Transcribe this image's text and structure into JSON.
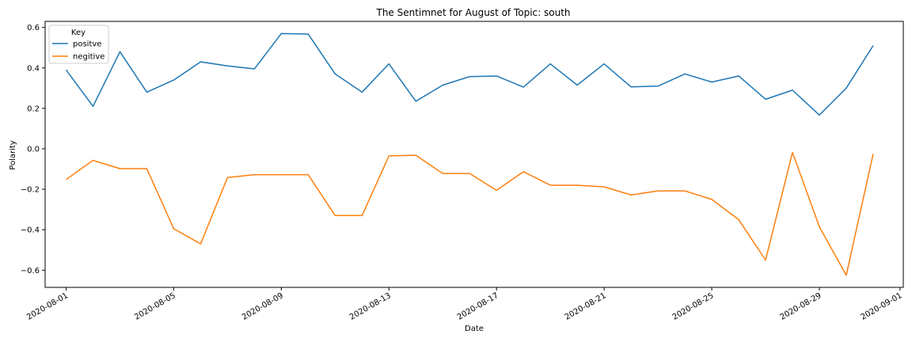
{
  "chart_data": {
    "type": "line",
    "title": "The Sentimnet for August of Topic: south",
    "xlabel": "Date",
    "ylabel": "Polarity",
    "x": [
      "2020-08-01",
      "2020-08-02",
      "2020-08-03",
      "2020-08-04",
      "2020-08-05",
      "2020-08-06",
      "2020-08-07",
      "2020-08-08",
      "2020-08-09",
      "2020-08-10",
      "2020-08-11",
      "2020-08-12",
      "2020-08-13",
      "2020-08-14",
      "2020-08-15",
      "2020-08-16",
      "2020-08-17",
      "2020-08-18",
      "2020-08-19",
      "2020-08-20",
      "2020-08-21",
      "2020-08-22",
      "2020-08-23",
      "2020-08-24",
      "2020-08-25",
      "2020-08-26",
      "2020-08-27",
      "2020-08-28",
      "2020-08-29",
      "2020-08-30",
      "2020-08-31"
    ],
    "x_ticks": [
      "2020-08-01",
      "2020-08-05",
      "2020-08-09",
      "2020-08-13",
      "2020-08-17",
      "2020-08-21",
      "2020-08-25",
      "2020-08-29",
      "2020-09-01"
    ],
    "y_ticks": [
      0.6,
      0.4,
      0.2,
      0.0,
      -0.2,
      -0.4,
      -0.6
    ],
    "y_tick_labels": [
      "0.6",
      "0.4",
      "0.2",
      "0.0",
      "−0.2",
      "−0.4",
      "−0.6"
    ],
    "xlim": [
      "2020-07-31",
      "2020-09-01"
    ],
    "ylim": [
      -0.685,
      0.63
    ],
    "grid": false,
    "legend": {
      "title": "Key",
      "position": "top-left"
    },
    "series": [
      {
        "name": "positve",
        "color": "#1f77b4",
        "values": [
          0.39,
          0.21,
          0.48,
          0.28,
          0.34,
          0.43,
          0.41,
          0.395,
          0.57,
          0.567,
          0.37,
          0.28,
          0.42,
          0.235,
          0.315,
          0.357,
          0.36,
          0.305,
          0.42,
          0.315,
          0.42,
          0.306,
          0.31,
          0.37,
          0.33,
          0.36,
          0.245,
          0.29,
          0.167,
          0.3,
          0.51
        ]
      },
      {
        "name": "negitive",
        "color": "#ff7f0e",
        "values": [
          -0.152,
          -0.057,
          -0.098,
          -0.098,
          -0.395,
          -0.47,
          -0.142,
          -0.128,
          -0.128,
          -0.128,
          -0.33,
          -0.33,
          -0.035,
          -0.032,
          -0.122,
          -0.122,
          -0.205,
          -0.113,
          -0.18,
          -0.18,
          -0.188,
          -0.228,
          -0.208,
          -0.208,
          -0.25,
          -0.35,
          -0.55,
          -0.018,
          -0.385,
          -0.625,
          -0.025
        ]
      }
    ]
  }
}
